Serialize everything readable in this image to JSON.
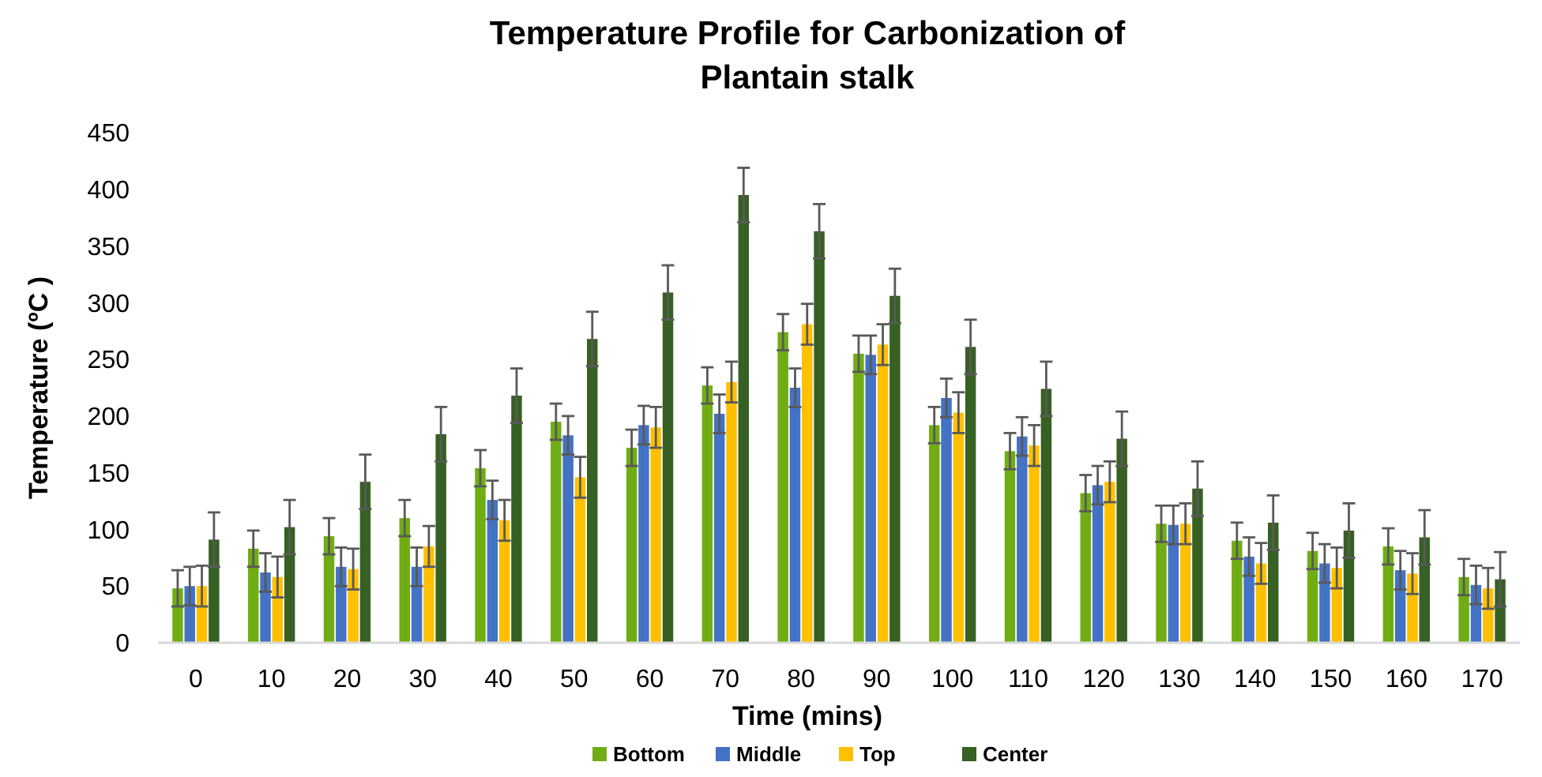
{
  "chart_data": {
    "type": "bar",
    "title": "Temperature Profile for Carbonization of Plantain stalk",
    "xlabel": "Time (mins)",
    "ylabel": "Temperature (ºC )",
    "categories": [
      "0",
      "10",
      "20",
      "30",
      "40",
      "50",
      "60",
      "70",
      "80",
      "90",
      "100",
      "110",
      "120",
      "130",
      "140",
      "150",
      "160",
      "170"
    ],
    "series": [
      {
        "name": "Bottom",
        "color": "#70ad14",
        "values": [
          48,
          83,
          94,
          110,
          154,
          195,
          172,
          227,
          274,
          255,
          192,
          169,
          132,
          105,
          90,
          81,
          85,
          58
        ],
        "errors": [
          16,
          16,
          16,
          16,
          16,
          16,
          16,
          16,
          16,
          16,
          16,
          16,
          16,
          16,
          16,
          16,
          16,
          16
        ]
      },
      {
        "name": "Middle",
        "color": "#4472c4",
        "values": [
          50,
          62,
          67,
          67,
          126,
          183,
          192,
          202,
          225,
          254,
          216,
          182,
          139,
          104,
          76,
          70,
          64,
          51
        ],
        "errors": [
          17,
          17,
          17,
          17,
          17,
          17,
          17,
          17,
          17,
          17,
          17,
          17,
          17,
          17,
          17,
          17,
          17,
          17
        ]
      },
      {
        "name": "Top",
        "color": "#ffc000",
        "values": [
          50,
          58,
          65,
          85,
          108,
          146,
          190,
          230,
          281,
          263,
          203,
          174,
          142,
          105,
          70,
          66,
          61,
          48
        ],
        "errors": [
          18,
          18,
          18,
          18,
          18,
          18,
          18,
          18,
          18,
          18,
          18,
          18,
          18,
          18,
          18,
          18,
          18,
          18
        ]
      },
      {
        "name": "Center",
        "color": "#376023",
        "values": [
          91,
          102,
          142,
          184,
          218,
          268,
          309,
          395,
          363,
          306,
          261,
          224,
          180,
          136,
          106,
          99,
          93,
          56
        ],
        "errors": [
          24,
          24,
          24,
          24,
          24,
          24,
          24,
          24,
          24,
          24,
          24,
          24,
          24,
          24,
          24,
          24,
          24,
          24
        ]
      }
    ],
    "ylim": [
      0,
      450
    ],
    "yticks": [
      0,
      50,
      100,
      150,
      200,
      250,
      300,
      350,
      400,
      450
    ],
    "grid": false,
    "legend": "bottom"
  }
}
